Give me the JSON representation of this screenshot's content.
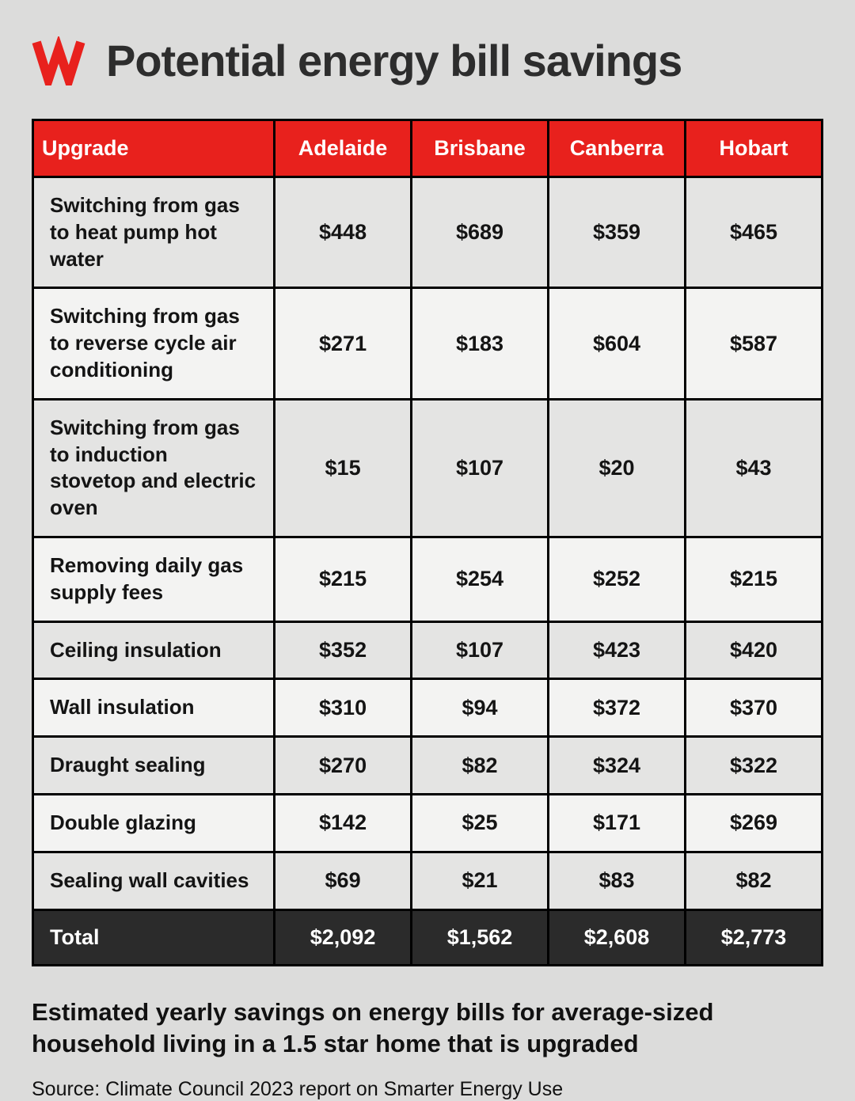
{
  "title": "Potential energy bill savings",
  "caption": "Estimated yearly savings on energy bills for average-sized household living in a 1.5 star home that is upgraded",
  "source": "Source: Climate Council 2023 report on Smarter Energy Use",
  "colors": {
    "background": "#dcdcdb",
    "red": "#e8211d",
    "total_row": "#2b2b2b",
    "row_odd": "#e4e4e3",
    "row_even": "#f3f3f2",
    "border": "#000000",
    "text_dark": "#141414",
    "text_light": "#ffffff"
  },
  "logo": {
    "icon": "sbs-logo",
    "color": "#e8211d"
  },
  "chart_data": {
    "type": "table",
    "title": "Potential energy bill savings",
    "columns": [
      "Upgrade",
      "Adelaide",
      "Brisbane",
      "Canberra",
      "Hobart"
    ],
    "rows": [
      {
        "label": "Switching from gas to heat pump hot water",
        "values": [
          "$448",
          "$689",
          "$359",
          "$465"
        ]
      },
      {
        "label": "Switching from gas to reverse cycle air conditioning",
        "values": [
          "$271",
          "$183",
          "$604",
          "$587"
        ]
      },
      {
        "label": "Switching from gas to induction stovetop and electric oven",
        "values": [
          "$15",
          "$107",
          "$20",
          "$43"
        ]
      },
      {
        "label": "Removing daily gas supply fees",
        "values": [
          "$215",
          "$254",
          "$252",
          "$215"
        ]
      },
      {
        "label": "Ceiling insulation",
        "values": [
          "$352",
          "$107",
          "$423",
          "$420"
        ]
      },
      {
        "label": "Wall insulation",
        "values": [
          "$310",
          "$94",
          "$372",
          "$370"
        ]
      },
      {
        "label": "Draught sealing",
        "values": [
          "$270",
          "$82",
          "$324",
          "$322"
        ]
      },
      {
        "label": "Double glazing",
        "values": [
          "$142",
          "$25",
          "$171",
          "$269"
        ]
      },
      {
        "label": "Sealing wall cavities",
        "values": [
          "$69",
          "$21",
          "$83",
          "$82"
        ]
      }
    ],
    "total": {
      "label": "Total",
      "values": [
        "$2,092",
        "$1,562",
        "$2,608",
        "$2,773"
      ]
    }
  }
}
